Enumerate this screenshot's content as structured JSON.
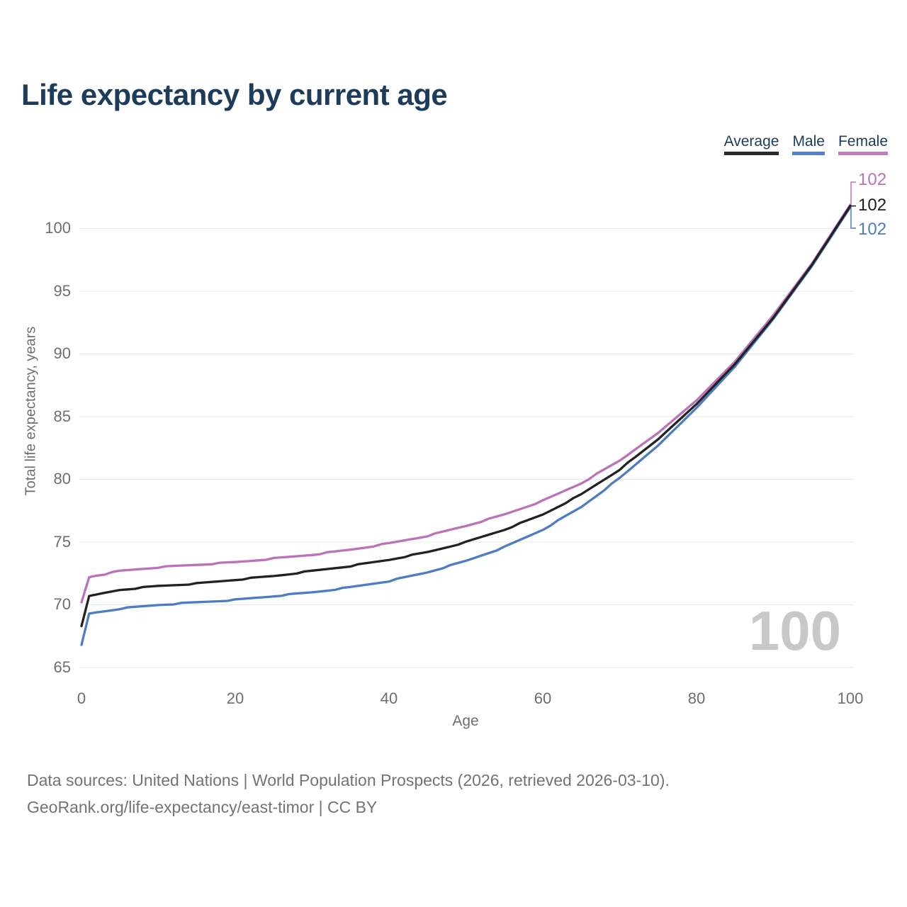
{
  "title": "Life expectancy by current age",
  "legend": {
    "items": [
      {
        "label": "Average",
        "color": "#2b2b2b"
      },
      {
        "label": "Male",
        "color": "#5583c6"
      },
      {
        "label": "Female",
        "color": "#c07ec0"
      }
    ]
  },
  "watermark": "100",
  "footer": {
    "line1": "Data sources: United Nations | World Population Prospects (2026, retrieved 2026-03-10).",
    "line2": "GeoRank.org/life-expectancy/east-timor | CC BY"
  },
  "colors": {
    "title_text": "#1d3c5a",
    "axis_text": "#6e6e6e",
    "grid": "#e8e8e8",
    "watermark": "#c8c8c8",
    "footer_text": "#737373"
  },
  "chart_data": {
    "type": "line",
    "title": "Life expectancy by current age",
    "xlabel": "Age",
    "ylabel": "Total life expectancy, years",
    "xlim": [
      0,
      100
    ],
    "ylim": [
      63.5,
      103
    ],
    "grid": "horizontal",
    "legend_position": "top-right",
    "x_tick_labels": [
      "0",
      "20",
      "40",
      "60",
      "80",
      "100"
    ],
    "y_tick_labels": [
      "65",
      "70",
      "75",
      "80",
      "85",
      "90",
      "95",
      "100"
    ],
    "x": [
      0,
      1,
      5,
      10,
      15,
      20,
      25,
      30,
      35,
      40,
      45,
      50,
      55,
      60,
      65,
      70,
      75,
      80,
      85,
      90,
      95,
      100
    ],
    "series": [
      {
        "name": "Average",
        "color": "#222222",
        "end_label": "102",
        "values": [
          68.3,
          70.7,
          71.2,
          71.5,
          71.7,
          72.0,
          72.3,
          72.7,
          73.1,
          73.6,
          74.2,
          75.0,
          76.0,
          77.2,
          78.8,
          80.8,
          83.2,
          86.0,
          89.2,
          92.9,
          97.1,
          101.8
        ]
      },
      {
        "name": "Male",
        "color": "#4d7cc4",
        "end_label": "102",
        "values": [
          66.8,
          69.3,
          69.7,
          70.0,
          70.2,
          70.4,
          70.7,
          71.0,
          71.4,
          71.9,
          72.6,
          73.5,
          74.6,
          76.0,
          77.8,
          80.1,
          82.7,
          85.7,
          89.0,
          92.8,
          97.0,
          101.7
        ]
      },
      {
        "name": "Female",
        "color": "#bb72b8",
        "end_label": "102",
        "values": [
          70.2,
          72.2,
          72.7,
          73.0,
          73.2,
          73.4,
          73.7,
          74.0,
          74.4,
          74.9,
          75.5,
          76.3,
          77.2,
          78.3,
          79.7,
          81.5,
          83.7,
          86.3,
          89.4,
          93.1,
          97.2,
          101.9
        ]
      }
    ]
  }
}
